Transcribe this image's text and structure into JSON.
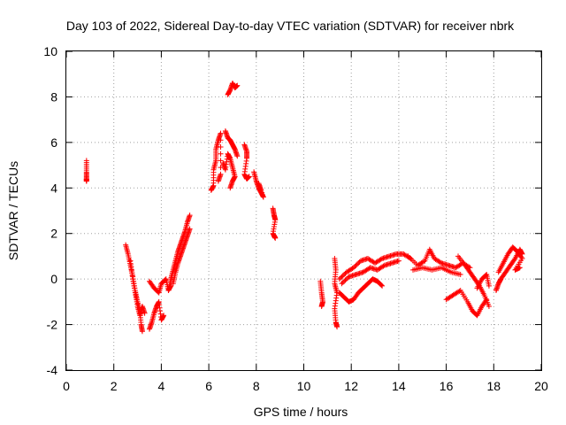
{
  "chart_data": {
    "type": "scatter",
    "title": "Day 103 of 2022, Sidereal Day-to-day VTEC variation (SDTVAR) for receiver nbrk",
    "xlabel": "GPS time / hours",
    "ylabel": "SDTVAR / TECUs",
    "xlim": [
      0,
      20
    ],
    "ylim": [
      -4,
      10
    ],
    "xticks": [
      0,
      2,
      4,
      6,
      8,
      10,
      12,
      14,
      16,
      18,
      20
    ],
    "yticks": [
      -4,
      -2,
      0,
      2,
      4,
      6,
      8,
      10
    ],
    "grid": true,
    "marker": "+",
    "color": "#ff0000",
    "series": [
      {
        "name": "SDTVAR",
        "segments": [
          [
            [
              0.85,
              5.2
            ],
            [
              0.85,
              4.7
            ],
            [
              0.85,
              4.4
            ],
            [
              0.85,
              4.3
            ]
          ],
          [
            [
              2.5,
              1.5
            ],
            [
              2.6,
              1.1
            ],
            [
              2.7,
              0.6
            ],
            [
              2.8,
              0.1
            ],
            [
              2.9,
              -0.5
            ],
            [
              3.0,
              -1.0
            ],
            [
              3.1,
              -1.4
            ],
            [
              3.15,
              -2.0
            ],
            [
              3.2,
              -2.3
            ]
          ],
          [
            [
              2.7,
              0.8
            ],
            [
              2.8,
              0.0
            ],
            [
              2.9,
              -0.6
            ],
            [
              3.0,
              -1.2
            ],
            [
              3.1,
              -1.6
            ],
            [
              3.2,
              -1.2
            ],
            [
              3.3,
              -1.5
            ]
          ],
          [
            [
              3.5,
              -2.2
            ],
            [
              3.6,
              -1.9
            ],
            [
              3.7,
              -1.5
            ],
            [
              3.8,
              -1.2
            ],
            [
              3.9,
              -1.0
            ],
            [
              4.0,
              -1.8
            ],
            [
              4.1,
              -1.6
            ]
          ],
          [
            [
              3.5,
              -0.1
            ],
            [
              3.7,
              -0.4
            ],
            [
              3.9,
              -0.6
            ],
            [
              4.0,
              -0.2
            ],
            [
              4.2,
              0.0
            ],
            [
              4.3,
              -0.5
            ],
            [
              4.4,
              -0.3
            ]
          ],
          [
            [
              4.3,
              -0.5
            ],
            [
              4.4,
              0.0
            ],
            [
              4.5,
              0.4
            ],
            [
              4.6,
              0.8
            ],
            [
              4.7,
              1.2
            ],
            [
              4.8,
              1.5
            ],
            [
              4.9,
              1.8
            ],
            [
              5.0,
              2.1
            ],
            [
              5.1,
              2.5
            ],
            [
              5.2,
              2.8
            ]
          ],
          [
            [
              4.5,
              -0.2
            ],
            [
              4.6,
              0.3
            ],
            [
              4.7,
              0.7
            ],
            [
              4.8,
              1.0
            ],
            [
              4.9,
              1.3
            ],
            [
              5.0,
              1.6
            ],
            [
              5.1,
              1.9
            ],
            [
              5.2,
              2.2
            ]
          ],
          [
            [
              6.1,
              3.9
            ],
            [
              6.2,
              4.1
            ],
            [
              6.2,
              4.8
            ],
            [
              6.3,
              5.2
            ],
            [
              6.3,
              5.7
            ],
            [
              6.4,
              6.1
            ],
            [
              6.5,
              6.4
            ],
            [
              6.5,
              4.6
            ],
            [
              6.4,
              4.3
            ]
          ],
          [
            [
              6.6,
              5.1
            ],
            [
              6.7,
              4.8
            ],
            [
              6.8,
              5.5
            ],
            [
              6.9,
              5.3
            ],
            [
              7.0,
              4.9
            ],
            [
              7.1,
              4.5
            ],
            [
              7.0,
              4.3
            ],
            [
              6.9,
              4.0
            ]
          ],
          [
            [
              6.7,
              6.5
            ],
            [
              6.8,
              6.2
            ],
            [
              6.9,
              6.1
            ],
            [
              7.0,
              5.9
            ],
            [
              7.1,
              5.7
            ],
            [
              7.2,
              5.4
            ]
          ],
          [
            [
              6.8,
              8.1
            ],
            [
              6.9,
              8.3
            ],
            [
              7.0,
              8.6
            ],
            [
              7.1,
              8.4
            ],
            [
              7.2,
              8.5
            ]
          ],
          [
            [
              7.5,
              5.9
            ],
            [
              7.6,
              5.6
            ],
            [
              7.6,
              5.3
            ],
            [
              7.5,
              4.6
            ],
            [
              7.6,
              4.4
            ],
            [
              7.7,
              4.5
            ]
          ],
          [
            [
              7.9,
              4.7
            ],
            [
              8.0,
              4.3
            ],
            [
              8.1,
              4.0
            ],
            [
              8.2,
              3.8
            ],
            [
              8.3,
              3.6
            ],
            [
              8.1,
              4.2
            ],
            [
              8.2,
              3.9
            ]
          ],
          [
            [
              8.7,
              3.1
            ],
            [
              8.75,
              2.8
            ],
            [
              8.8,
              2.6
            ],
            [
              8.7,
              2.0
            ],
            [
              8.8,
              1.8
            ],
            [
              8.75,
              1.9
            ]
          ],
          [
            [
              10.7,
              -0.1
            ],
            [
              10.75,
              -0.6
            ],
            [
              10.8,
              -1.0
            ],
            [
              10.75,
              -1.2
            ]
          ],
          [
            [
              11.3,
              0.9
            ],
            [
              11.35,
              0.4
            ],
            [
              11.3,
              -0.2
            ],
            [
              11.4,
              -0.6
            ],
            [
              11.3,
              -1.3
            ],
            [
              11.35,
              -1.9
            ],
            [
              11.4,
              -2.1
            ]
          ],
          [
            [
              11.5,
              -0.6
            ],
            [
              11.7,
              -0.8
            ],
            [
              11.9,
              -1.0
            ],
            [
              12.1,
              -0.9
            ],
            [
              12.3,
              -0.6
            ],
            [
              12.5,
              -0.4
            ],
            [
              12.7,
              -0.2
            ],
            [
              12.9,
              0.0
            ],
            [
              13.1,
              -0.1
            ],
            [
              13.3,
              -0.3
            ]
          ],
          [
            [
              11.5,
              0.0
            ],
            [
              11.8,
              0.3
            ],
            [
              12.1,
              0.5
            ],
            [
              12.4,
              0.8
            ],
            [
              12.7,
              0.9
            ],
            [
              13.0,
              0.7
            ],
            [
              13.3,
              0.9
            ],
            [
              13.6,
              1.0
            ],
            [
              13.9,
              1.1
            ],
            [
              14.2,
              1.1
            ],
            [
              14.5,
              0.9
            ]
          ],
          [
            [
              11.6,
              -0.2
            ],
            [
              11.9,
              0.1
            ],
            [
              12.2,
              0.2
            ],
            [
              12.5,
              0.3
            ],
            [
              12.8,
              0.5
            ],
            [
              13.1,
              0.4
            ],
            [
              13.4,
              0.6
            ],
            [
              13.7,
              0.7
            ],
            [
              14.0,
              0.8
            ]
          ],
          [
            [
              14.4,
              1.0
            ],
            [
              14.8,
              0.6
            ],
            [
              15.1,
              0.8
            ],
            [
              15.3,
              1.3
            ],
            [
              15.5,
              0.9
            ],
            [
              15.8,
              0.7
            ],
            [
              16.1,
              0.6
            ],
            [
              16.4,
              0.5
            ],
            [
              16.7,
              0.7
            ],
            [
              17.0,
              0.5
            ]
          ],
          [
            [
              14.6,
              0.4
            ],
            [
              15.0,
              0.5
            ],
            [
              15.4,
              0.4
            ],
            [
              15.8,
              0.5
            ],
            [
              16.2,
              0.3
            ],
            [
              16.6,
              0.2
            ]
          ],
          [
            [
              16.0,
              -0.9
            ],
            [
              16.3,
              -0.7
            ],
            [
              16.6,
              -0.5
            ],
            [
              16.9,
              -1.0
            ],
            [
              17.1,
              -1.4
            ],
            [
              17.3,
              -1.6
            ],
            [
              17.5,
              -1.2
            ],
            [
              17.7,
              -0.9
            ]
          ],
          [
            [
              16.5,
              1.0
            ],
            [
              16.8,
              0.6
            ],
            [
              17.0,
              0.3
            ],
            [
              17.2,
              0.0
            ],
            [
              17.4,
              -0.3
            ],
            [
              17.6,
              -0.7
            ],
            [
              17.8,
              -1.2
            ]
          ],
          [
            [
              17.3,
              -0.4
            ],
            [
              17.5,
              0.0
            ],
            [
              17.7,
              0.2
            ],
            [
              17.8,
              -0.3
            ]
          ],
          [
            [
              18.1,
              -0.5
            ],
            [
              18.2,
              -0.2
            ],
            [
              18.3,
              0.0
            ],
            [
              18.5,
              0.3
            ],
            [
              18.7,
              0.6
            ],
            [
              18.9,
              0.9
            ],
            [
              19.1,
              1.3
            ],
            [
              19.2,
              1.1
            ]
          ],
          [
            [
              18.2,
              0.3
            ],
            [
              18.4,
              0.7
            ],
            [
              18.6,
              1.1
            ],
            [
              18.8,
              1.4
            ],
            [
              19.0,
              1.2
            ],
            [
              19.2,
              0.9
            ],
            [
              18.9,
              0.4
            ],
            [
              19.1,
              0.5
            ]
          ]
        ]
      }
    ]
  }
}
